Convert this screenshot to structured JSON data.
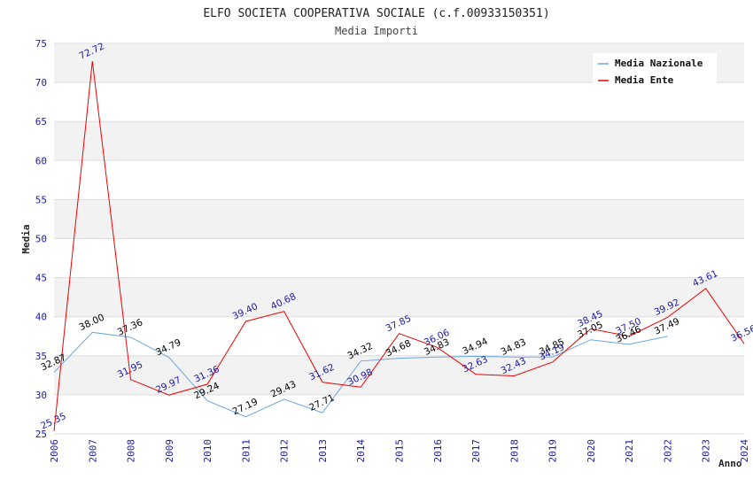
{
  "chart_data": {
    "type": "line",
    "title": "ELFO SOCIETA COOPERATIVA SOCIALE (c.f.00933150351)",
    "subtitle": "Media Importi",
    "xlabel": "Anno",
    "ylabel": "Media",
    "ylim": [
      25,
      75
    ],
    "yticks": [
      25,
      30,
      35,
      40,
      45,
      50,
      55,
      60,
      65,
      70,
      75
    ],
    "grid": true,
    "legend_position": "top-right",
    "categories": [
      "2006",
      "2007",
      "2008",
      "2009",
      "2010",
      "2011",
      "2012",
      "2013",
      "2014",
      "2015",
      "2016",
      "2017",
      "2018",
      "2019",
      "2020",
      "2021",
      "2022",
      "2023",
      "2024"
    ],
    "series": [
      {
        "name": "Media Nazionale",
        "color": "#6aa7e0",
        "label_color": "#000000",
        "values": [
          32.87,
          38.0,
          37.36,
          34.79,
          29.24,
          27.19,
          29.43,
          27.71,
          34.32,
          34.68,
          34.83,
          34.94,
          34.83,
          34.85,
          37.05,
          36.46,
          37.49,
          null,
          null
        ],
        "labels": [
          "32.87",
          "38.00",
          "37.36",
          "34.79",
          "29.24",
          "27.19",
          "29.43",
          "27.71",
          "34.32",
          "34.68",
          "34.83",
          "34.94",
          "34.83",
          "34.85",
          "37.05",
          "36.46",
          "37.49",
          null,
          null
        ]
      },
      {
        "name": "Media Ente",
        "color": "#ee0000",
        "label_color": "#1a1aa6",
        "values": [
          25.35,
          72.72,
          31.95,
          29.97,
          31.36,
          39.4,
          40.68,
          31.62,
          30.98,
          37.85,
          36.06,
          32.63,
          32.43,
          34.19,
          38.45,
          37.5,
          39.92,
          43.61,
          36.56
        ],
        "labels": [
          "25.35",
          "72.72",
          "31.95",
          "29.97",
          "31.36",
          "39.40",
          "40.68",
          "31.62",
          "30.98",
          "37.85",
          "36.06",
          "32.63",
          "32.43",
          "34.19",
          "38.45",
          "37.50",
          "39.92",
          "43.61",
          "36.56"
        ]
      }
    ]
  }
}
